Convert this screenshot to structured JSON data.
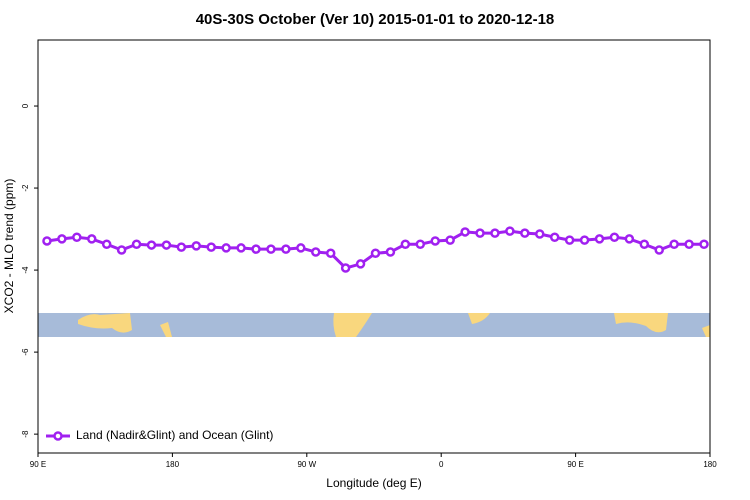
{
  "chart_data": {
    "type": "line",
    "title": "40S-30S October (Ver 10)   2015-01-01 to 2020-12-18",
    "xlabel": "Longitude (deg E)",
    "ylabel": "XCO2 - MLO trend (ppm)",
    "x": [
      96,
      106,
      116,
      126,
      136,
      146,
      156,
      166,
      176,
      186,
      196,
      206,
      216,
      226,
      236,
      246,
      256,
      266,
      276,
      286,
      296,
      306,
      316,
      326,
      336,
      346,
      356,
      366,
      376,
      386,
      396,
      406,
      416,
      426,
      436,
      446,
      456,
      466,
      476,
      486,
      496,
      506,
      516,
      526,
      536
    ],
    "series": [
      {
        "name": "Land (Nadir&Glint) and Ocean (Glint)",
        "color": "#a020f0",
        "values": [
          -3.29,
          -3.24,
          -3.2,
          -3.24,
          -3.37,
          -3.51,
          -3.37,
          -3.39,
          -3.39,
          -3.44,
          -3.41,
          -3.44,
          -3.46,
          -3.46,
          -3.49,
          -3.49,
          -3.49,
          -3.46,
          -3.56,
          -3.59,
          -3.95,
          -3.85,
          -3.59,
          -3.56,
          -3.37,
          -3.37,
          -3.29,
          -3.27,
          -3.07,
          -3.1,
          -3.1,
          -3.05,
          -3.1,
          -3.12,
          -3.2,
          -3.27,
          -3.27,
          -3.24,
          -3.2,
          -3.24,
          -3.37,
          -3.51,
          -3.37,
          -3.37,
          -3.37
        ]
      }
    ],
    "xlim": [
      90,
      540
    ],
    "xticks": [
      {
        "value": 90,
        "label": "90 E"
      },
      {
        "value": 180,
        "label": "180"
      },
      {
        "value": 270,
        "label": "90 W"
      },
      {
        "value": 360,
        "label": "0"
      },
      {
        "value": 450,
        "label": "90 E"
      },
      {
        "value": 540,
        "label": "180"
      }
    ],
    "ylim": [
      -8.46,
      1.61
    ],
    "yticks": [
      0,
      -2,
      -4,
      -6,
      -8
    ],
    "legend": "bottom-left"
  }
}
